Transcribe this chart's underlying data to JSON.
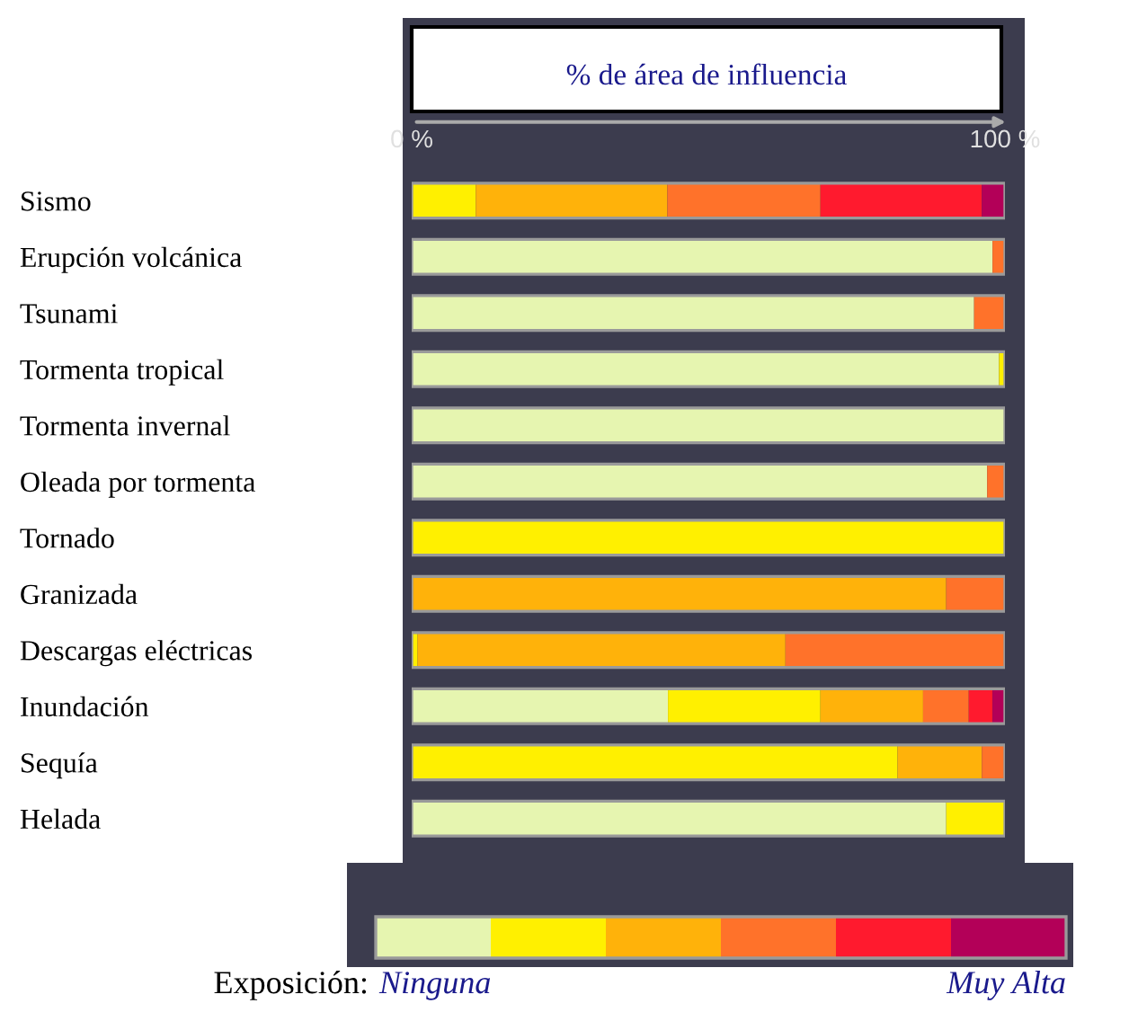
{
  "chart_data": {
    "type": "bar",
    "orientation": "horizontal",
    "stacked": true,
    "title": "% de área de influencia",
    "categories": [
      "Sismo",
      "Erupción volcánica",
      "Tsunami",
      "Tormenta tropical",
      "Tormenta invernal",
      "Oleada por tormenta",
      "Tornado",
      "Granizada",
      "Descargas eléctricas",
      "Inundación",
      "Sequía",
      "Helada"
    ],
    "series": [
      {
        "name": "Ninguna",
        "color": "#e6f5b0",
        "values": [
          0,
          97.9,
          94.8,
          99.0,
          100,
          97.0,
          0,
          0,
          0,
          43.2,
          0,
          90.1
        ]
      },
      {
        "color": "#fff000",
        "values": [
          10.8,
          0,
          0,
          1.0,
          0,
          0,
          100,
          0,
          1.0,
          25.7,
          81.9,
          9.9
        ]
      },
      {
        "color": "#ffb20a",
        "values": [
          32.3,
          0,
          0,
          0,
          0,
          0,
          0,
          90.1,
          62.0,
          17.3,
          14.2,
          0
        ]
      },
      {
        "color": "#ff722a",
        "values": [
          25.8,
          2.1,
          5.2,
          0,
          0,
          3.0,
          0,
          9.9,
          37.0,
          7.7,
          3.9,
          0
        ]
      },
      {
        "color": "#ff1a2e",
        "values": [
          27.2,
          0,
          0,
          0,
          0,
          0,
          0,
          0,
          0,
          4.0,
          0,
          0
        ]
      },
      {
        "name": "Muy Alta",
        "color": "#b30058",
        "values": [
          3.9,
          0,
          0,
          0,
          0,
          0,
          0,
          0,
          0,
          2.1,
          0,
          0
        ]
      }
    ],
    "xlim": [
      0,
      100
    ],
    "xticks": [
      {
        "value": 0,
        "label": "0 %"
      },
      {
        "value": 100,
        "label": "100 %"
      }
    ],
    "legend": "bottom",
    "legend_title": "Exposición:"
  }
}
